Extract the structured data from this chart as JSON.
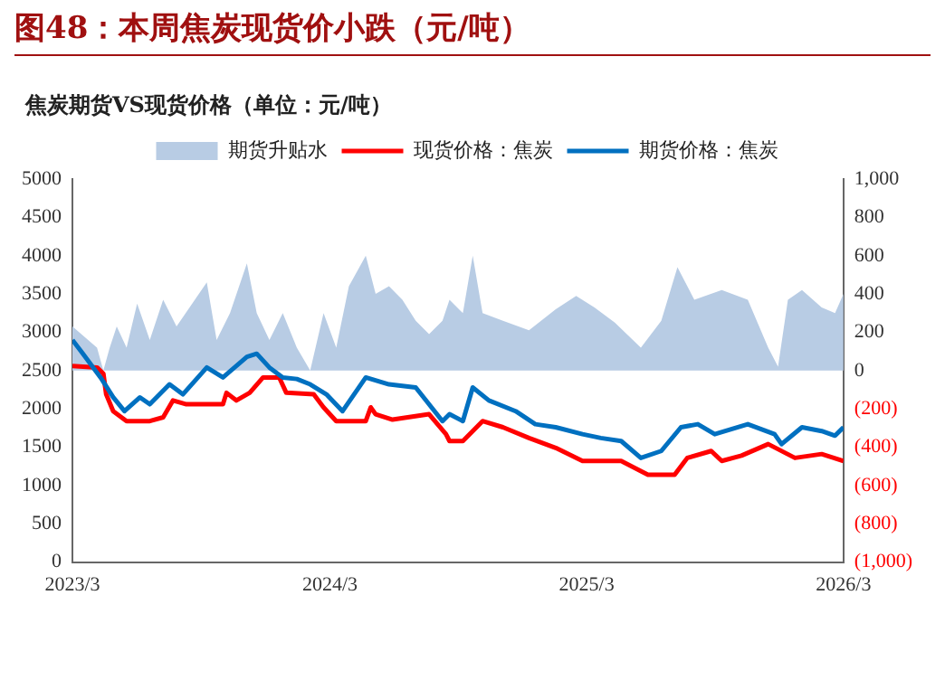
{
  "chart_data": {
    "type": "line",
    "title": "图48：本周焦炭现货价小跌（元/吨）",
    "subtitle": "焦炭期货VS现货价格（单位：元/吨）",
    "xlim": [
      "2023-03",
      "2026-03"
    ],
    "xticks": [
      {
        "value": "2023-03",
        "label": "2023/3"
      },
      {
        "value": "2024-03",
        "label": "2024/3"
      },
      {
        "value": "2025-03",
        "label": "2025/3"
      },
      {
        "value": "2026-03",
        "label": "2026/3"
      }
    ],
    "ylim": [
      0,
      5000
    ],
    "yticks": [
      0,
      500,
      1000,
      1500,
      2000,
      2500,
      3000,
      3500,
      4000,
      4500,
      5000
    ],
    "y2lim": [
      -1000,
      1000
    ],
    "y2ticks": [
      {
        "value": -1000,
        "label": "(1,000)"
      },
      {
        "value": -800,
        "label": "(800)"
      },
      {
        "value": -600,
        "label": "(600)"
      },
      {
        "value": -400,
        "label": "(400)"
      },
      {
        "value": -200,
        "label": "(200)"
      },
      0,
      200,
      400,
      600,
      800,
      {
        "value": 1000,
        "label": "1,000"
      }
    ],
    "grid": false,
    "legend": "top",
    "marker": "none",
    "series": [
      {
        "name": "期货升贴水",
        "type": "area",
        "axis": "y2",
        "color": "#b8cce4",
        "x": [
          "2023-03-01",
          "2023-04-05",
          "2023-04-14",
          "2023-04-23",
          "2023-05-03",
          "2023-05-17",
          "2023-06-01",
          "2023-06-19",
          "2023-07-08",
          "2023-07-27",
          "2023-09-08",
          "2023-09-22",
          "2023-10-11",
          "2023-11-04",
          "2023-11-18",
          "2023-12-06",
          "2023-12-25",
          "2024-01-14",
          "2024-02-02",
          "2024-02-21",
          "2024-03-10",
          "2024-03-28",
          "2024-04-21",
          "2024-05-05",
          "2024-05-24",
          "2024-06-12",
          "2024-07-01",
          "2024-07-20",
          "2024-08-08",
          "2024-08-18",
          "2024-09-06",
          "2024-09-20",
          "2024-10-04",
          "2024-11-02",
          "2024-12-09",
          "2025-01-16",
          "2025-02-14",
          "2025-03-12",
          "2025-04-10",
          "2025-05-17",
          "2025-06-15",
          "2025-07-08",
          "2025-08-01",
          "2025-09-09",
          "2025-10-16",
          "2025-11-14",
          "2025-11-28",
          "2025-12-12",
          "2026-01-01",
          "2026-01-29",
          "2026-02-17",
          "2026-03-01"
        ],
        "values": [
          230,
          120,
          0,
          120,
          230,
          120,
          350,
          160,
          370,
          230,
          460,
          160,
          300,
          560,
          300,
          160,
          300,
          120,
          0,
          300,
          120,
          440,
          600,
          400,
          440,
          370,
          260,
          190,
          260,
          370,
          300,
          600,
          300,
          260,
          210,
          320,
          390,
          330,
          250,
          120,
          260,
          540,
          370,
          420,
          370,
          120,
          20,
          370,
          420,
          330,
          300,
          400
        ]
      },
      {
        "name": "期货价格：焦炭",
        "type": "line",
        "axis": "y",
        "color": "#0070c0",
        "x": [
          "2023-03-01",
          "2023-03-16",
          "2023-04-10",
          "2023-04-28",
          "2023-05-14",
          "2023-06-05",
          "2023-06-19",
          "2023-07-17",
          "2023-08-05",
          "2023-09-08",
          "2023-10-01",
          "2023-11-04",
          "2023-11-18",
          "2023-12-06",
          "2023-12-25",
          "2024-01-14",
          "2024-02-02",
          "2024-02-25",
          "2024-03-19",
          "2024-04-21",
          "2024-05-24",
          "2024-07-01",
          "2024-08-08",
          "2024-08-18",
          "2024-09-06",
          "2024-09-20",
          "2024-10-13",
          "2024-11-20",
          "2024-12-18",
          "2025-01-16",
          "2025-02-23",
          "2025-03-21",
          "2025-04-19",
          "2025-05-17",
          "2025-06-15",
          "2025-07-13",
          "2025-08-06",
          "2025-08-30",
          "2025-10-16",
          "2025-11-23",
          "2025-12-03",
          "2026-01-01",
          "2026-01-29",
          "2026-02-17",
          "2026-03-01"
        ],
        "values": [
          2900,
          2720,
          2410,
          2150,
          1970,
          2150,
          2060,
          2320,
          2190,
          2540,
          2410,
          2680,
          2720,
          2540,
          2410,
          2390,
          2320,
          2190,
          1970,
          2410,
          2320,
          2280,
          1840,
          1930,
          1840,
          2280,
          2110,
          1970,
          1800,
          1760,
          1670,
          1620,
          1580,
          1360,
          1450,
          1760,
          1800,
          1670,
          1800,
          1670,
          1540,
          1760,
          1710,
          1650,
          1760
        ]
      },
      {
        "name": "现货价格：焦炭",
        "type": "line",
        "axis": "y",
        "color": "#ff0000",
        "x": [
          "2023-03-01",
          "2023-04-05",
          "2023-04-14",
          "2023-04-18",
          "2023-04-28",
          "2023-05-17",
          "2023-06-19",
          "2023-07-08",
          "2023-07-22",
          "2023-08-10",
          "2023-10-01",
          "2023-10-06",
          "2023-10-20",
          "2023-11-08",
          "2023-11-27",
          "2023-12-20",
          "2023-12-30",
          "2024-02-07",
          "2024-02-21",
          "2024-03-10",
          "2024-04-21",
          "2024-04-28",
          "2024-05-05",
          "2024-05-29",
          "2024-07-20",
          "2024-08-13",
          "2024-08-18",
          "2024-09-06",
          "2024-10-04",
          "2024-11-02",
          "2024-12-09",
          "2025-01-16",
          "2025-02-23",
          "2025-04-19",
          "2025-05-27",
          "2025-07-04",
          "2025-07-22",
          "2025-08-25",
          "2025-09-09",
          "2025-10-07",
          "2025-11-14",
          "2025-12-22",
          "2026-01-29",
          "2026-03-01"
        ],
        "values": [
          2560,
          2540,
          2460,
          2190,
          1970,
          1840,
          1840,
          1890,
          2110,
          2060,
          2060,
          2210,
          2110,
          2210,
          2410,
          2410,
          2210,
          2190,
          2020,
          1840,
          1840,
          2020,
          1930,
          1860,
          1930,
          1670,
          1580,
          1580,
          1840,
          1760,
          1620,
          1490,
          1320,
          1320,
          1140,
          1140,
          1360,
          1450,
          1320,
          1390,
          1540,
          1360,
          1410,
          1320
        ]
      }
    ]
  }
}
